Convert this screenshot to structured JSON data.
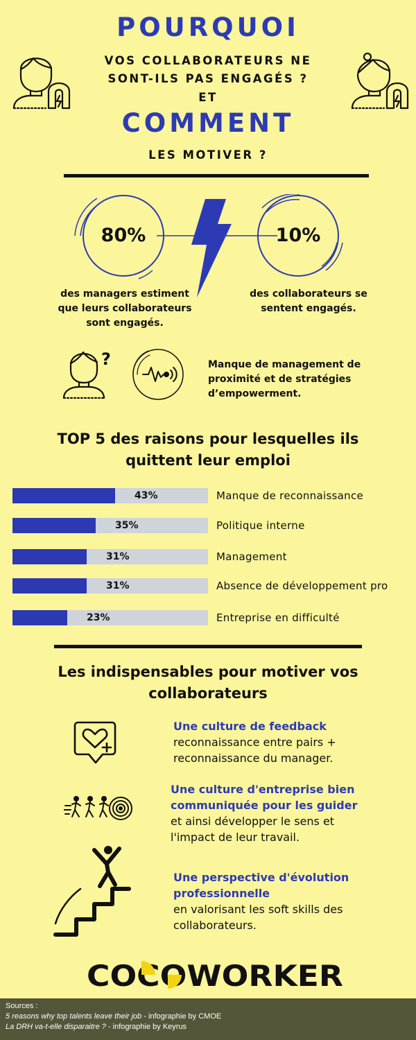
{
  "header": {
    "line1": "POURQUOI",
    "line2a": "VOS COLLABORATEURS NE",
    "line2b": "SONT-ILS PAS ENGAGÉS ?",
    "line3": "ET",
    "line4": "COMMENT",
    "line5": "LES MOTIVER ?"
  },
  "stats": {
    "left": {
      "value": "80%",
      "text1": "des managers estiment",
      "text2": "que leurs collaborateurs",
      "text3": "sont engagés."
    },
    "right": {
      "value": "10%",
      "text1": "des collaborateurs se",
      "text2": "sentent engagés."
    }
  },
  "cause": {
    "line1": "Manque de management de",
    "line2": "proximité et de stratégies",
    "line3": "d’empowerment."
  },
  "top5": {
    "title1": "TOP 5 des raisons pour lesquelles ils",
    "title2": "quittent leur emploi",
    "items": [
      {
        "value": "43%",
        "fraction": 0.43,
        "label": "Manque de reconnaissance"
      },
      {
        "value": "35%",
        "fraction": 0.35,
        "label": "Politique interne"
      },
      {
        "value": "31%",
        "fraction": 0.31,
        "label": "Management"
      },
      {
        "value": "31%",
        "fraction": 0.31,
        "label": "Absence de développement pro"
      },
      {
        "value": "23%",
        "fraction": 0.23,
        "label": "Entreprise en difficulté"
      }
    ]
  },
  "motivate": {
    "title1": "Les indispensables pour motiver vos",
    "title2": "collaborateurs",
    "items": [
      {
        "title1": "Une culture de feedback",
        "title2": "",
        "desc1": "reconnaissance entre pairs +",
        "desc2": "reconnaissance du manager."
      },
      {
        "title1": "Une culture d'entreprise bien",
        "title2": "communiquée pour les guider",
        "desc1": "et ainsi développer le sens et",
        "desc2": "l'impact de leur travail."
      },
      {
        "title1": "Une perspective d'évolution",
        "title2": "professionnelle",
        "desc1": "en valorisant les soft skills des",
        "desc2": "collaborateurs."
      }
    ]
  },
  "brand": {
    "logo": "COCOWORKER"
  },
  "footer": {
    "label": "Sources :",
    "src1_title": "5 reasons why top talents leave their job",
    "src1_by": " - infographie by CMOE",
    "src2_title": "La DRH va-t-elle disparaitre ?",
    "src2_by": " - infographie by Keyrus"
  },
  "colors": {
    "background": "#fbf59c",
    "accent": "#2c3bb3",
    "bar_track": "#cfd3da",
    "footer": "#55553a"
  }
}
